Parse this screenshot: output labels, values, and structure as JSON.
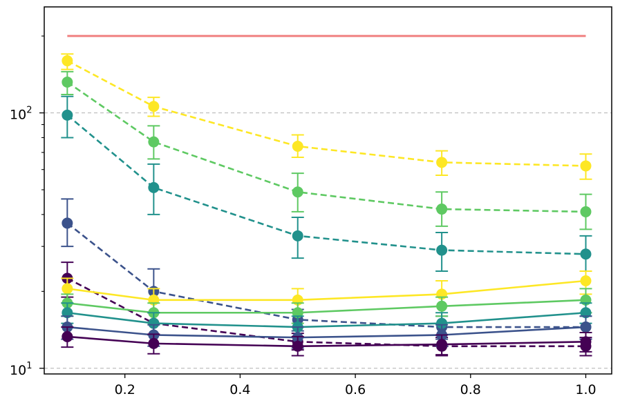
{
  "chart_data": {
    "type": "line",
    "title": "",
    "xlabel": "",
    "ylabel": "",
    "yscale": "log",
    "xlim": [
      0.06,
      1.045
    ],
    "ylim": [
      9.5,
      260
    ],
    "x": [
      0.1,
      0.25,
      0.5,
      0.75,
      1.0
    ],
    "x_ticks": [
      {
        "value": 0.2,
        "label": "0.2"
      },
      {
        "value": 0.4,
        "label": "0.4"
      },
      {
        "value": 0.6,
        "label": "0.6"
      },
      {
        "value": 0.8,
        "label": "0.8"
      },
      {
        "value": 1.0,
        "label": "1.0"
      }
    ],
    "y_major_ticks": [
      {
        "value": 10,
        "base": "10",
        "exp": "1"
      },
      {
        "value": 100,
        "base": "10",
        "exp": "2"
      }
    ],
    "y_minor_ticks": [
      20,
      30,
      40,
      50,
      60,
      70,
      80,
      90,
      200
    ],
    "gridlines_y": [
      10,
      100
    ],
    "reference_line": {
      "y": 200,
      "x_start": 0.1,
      "x_end": 1.0,
      "color": "#f08080"
    },
    "series": [
      {
        "name": "dashed-yellow",
        "style": "dashed",
        "color": "#fde725",
        "values": [
          160,
          106,
          74,
          64,
          62
        ],
        "err_low": [
          148,
          97,
          67,
          57,
          55
        ],
        "err_high": [
          170,
          115,
          82,
          71,
          69
        ]
      },
      {
        "name": "dashed-green",
        "style": "dashed",
        "color": "#5ec962",
        "values": [
          132,
          77,
          49,
          42,
          41
        ],
        "err_low": [
          118,
          66,
          41,
          36,
          35
        ],
        "err_high": [
          145,
          89,
          58,
          49,
          48
        ]
      },
      {
        "name": "dashed-teal",
        "style": "dashed",
        "color": "#21918c",
        "values": [
          98,
          51,
          33,
          29,
          28
        ],
        "err_low": [
          80,
          40,
          27,
          24,
          24
        ],
        "err_high": [
          116,
          63,
          39,
          34,
          33
        ]
      },
      {
        "name": "dashed-blue",
        "style": "dashed",
        "color": "#3b528b",
        "values": [
          37,
          20,
          15.5,
          14.5,
          14.5
        ],
        "err_low": [
          30,
          16.5,
          14,
          13,
          13
        ],
        "err_high": [
          46,
          24.5,
          17,
          16,
          16
        ]
      },
      {
        "name": "dashed-purple",
        "style": "dashed",
        "color": "#440154",
        "values": [
          22.5,
          15,
          12.7,
          12.2,
          12.2
        ],
        "err_low": [
          19,
          13.5,
          11.8,
          11.2,
          11.2
        ],
        "err_high": [
          26,
          16.5,
          13.7,
          13.2,
          13.2
        ]
      },
      {
        "name": "solid-yellow",
        "style": "solid",
        "color": "#fde725",
        "values": [
          20.5,
          18.5,
          18.5,
          19.5,
          22
        ],
        "err_low": [
          18,
          16.5,
          16.5,
          17.5,
          19.5
        ],
        "err_high": [
          22.5,
          20.5,
          20.5,
          22,
          24
        ]
      },
      {
        "name": "solid-green",
        "style": "solid",
        "color": "#5ec962",
        "values": [
          18,
          16.5,
          16.5,
          17.5,
          18.5
        ],
        "err_low": [
          16,
          15,
          15,
          16,
          16.5
        ],
        "err_high": [
          19.5,
          18,
          18,
          19,
          20.5
        ]
      },
      {
        "name": "solid-teal",
        "style": "solid",
        "color": "#21918c",
        "values": [
          16.5,
          15,
          14.5,
          15,
          16.5
        ],
        "err_low": [
          15,
          13.5,
          13.2,
          13.5,
          15
        ],
        "err_high": [
          18,
          16.5,
          16,
          16.5,
          18
        ]
      },
      {
        "name": "solid-blue",
        "style": "solid",
        "color": "#3b528b",
        "values": [
          14.5,
          13.5,
          13.2,
          13.5,
          14.5
        ],
        "err_low": [
          13,
          12.2,
          12,
          12.2,
          13
        ],
        "err_high": [
          16,
          14.8,
          14.5,
          14.8,
          16
        ]
      },
      {
        "name": "solid-purple",
        "style": "solid",
        "color": "#440154",
        "values": [
          13.3,
          12.5,
          12.2,
          12.4,
          12.7
        ],
        "err_low": [
          12.1,
          11.4,
          11.2,
          11.3,
          11.6
        ],
        "err_high": [
          14.5,
          13.6,
          13.3,
          13.5,
          13.8
        ]
      }
    ]
  }
}
